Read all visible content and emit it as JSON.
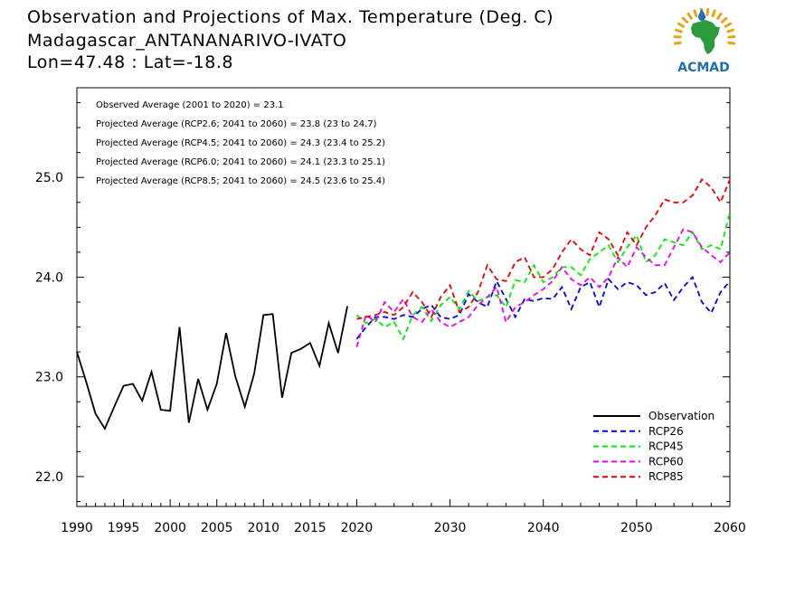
{
  "header": {
    "title": "Observation and Projections of Max. Temperature (Deg. C)",
    "station": "Madagascar_ANTANANARIVO-IVATO",
    "coords": "Lon=47.48 : Lat=-18.8"
  },
  "logo": {
    "text": "ACMAD",
    "icon": "africa-map-logo-icon",
    "colors": {
      "africa": "#2e9a3e",
      "text": "#1f6fb4",
      "rays": "#e8a317",
      "drop": "#1f6fb4"
    }
  },
  "chart_data": {
    "type": "line",
    "xlim": [
      1990,
      2060
    ],
    "ylim": [
      21.7,
      25.9
    ],
    "x_ticks": [
      1990,
      1995,
      2000,
      2005,
      2010,
      2015,
      2020,
      2030,
      2040,
      2050,
      2060
    ],
    "x_tick_labels": [
      "1990",
      "1995",
      "2000",
      "2005",
      "2010",
      "2015",
      "2020",
      "2030",
      "2040",
      "2050",
      "2060"
    ],
    "y_ticks": [
      22.0,
      23.0,
      24.0,
      25.0
    ],
    "y_tick_labels": [
      "22.0",
      "23.0",
      "24.0",
      "25.0"
    ],
    "annotations": [
      "Observed Average (2001 to 2020) = 23.1",
      "Projected Average (RCP2.6; 2041 to 2060) = 23.8 (23 to 24.7)",
      "Projected Average (RCP4.5; 2041 to 2060) = 24.3 (23.4 to 25.2)",
      "Projected Average (RCP6.0; 2041 to 2060) = 24.1 (23.3 to 25.1)",
      "Projected Average (RCP8.5; 2041 to 2060) = 24.5 (23.6 to 25.4)"
    ],
    "legend_position": "bottom-right",
    "series": [
      {
        "name": "Observation",
        "color": "#000000",
        "dash": "solid",
        "x": [
          1990,
          1991,
          1992,
          1993,
          1994,
          1995,
          1996,
          1997,
          1998,
          1999,
          2000,
          2001,
          2002,
          2003,
          2004,
          2005,
          2006,
          2007,
          2008,
          2009,
          2010,
          2011,
          2012,
          2013,
          2014,
          2015,
          2016,
          2017,
          2018,
          2019
        ],
        "y": [
          23.25,
          22.95,
          22.63,
          22.48,
          22.7,
          22.91,
          22.93,
          22.76,
          23.05,
          22.67,
          22.66,
          23.5,
          22.54,
          22.98,
          22.67,
          22.93,
          23.44,
          23.0,
          22.7,
          23.03,
          23.62,
          23.63,
          22.79,
          23.24,
          23.28,
          23.34,
          23.11,
          23.54,
          23.24,
          23.71
        ]
      },
      {
        "name": "RCP26",
        "color": "#0000ee",
        "dash": "dashed",
        "x": [
          2020,
          2021,
          2022,
          2023,
          2024,
          2025,
          2026,
          2027,
          2028,
          2029,
          2030,
          2031,
          2032,
          2033,
          2034,
          2035,
          2036,
          2037,
          2038,
          2039,
          2040,
          2041,
          2042,
          2043,
          2044,
          2045,
          2046,
          2047,
          2048,
          2049,
          2050,
          2051,
          2052,
          2053,
          2054,
          2055,
          2056,
          2057,
          2058,
          2059,
          2060
        ],
        "y": [
          23.38,
          23.5,
          23.6,
          23.6,
          23.58,
          23.62,
          23.6,
          23.68,
          23.72,
          23.6,
          23.58,
          23.62,
          23.83,
          23.75,
          23.7,
          23.96,
          23.78,
          23.6,
          23.78,
          23.76,
          23.79,
          23.78,
          23.9,
          23.68,
          23.9,
          23.95,
          23.7,
          23.98,
          23.88,
          23.95,
          23.92,
          23.82,
          23.85,
          23.94,
          23.77,
          23.9,
          24.0,
          23.75,
          23.64,
          23.85,
          23.96
        ]
      },
      {
        "name": "RCP45",
        "color": "#00ee00",
        "dash": "dashed",
        "x": [
          2020,
          2021,
          2022,
          2023,
          2024,
          2025,
          2026,
          2027,
          2028,
          2029,
          2030,
          2031,
          2032,
          2033,
          2034,
          2035,
          2036,
          2037,
          2038,
          2039,
          2040,
          2041,
          2042,
          2043,
          2044,
          2045,
          2046,
          2047,
          2048,
          2049,
          2050,
          2051,
          2052,
          2053,
          2054,
          2055,
          2056,
          2057,
          2058,
          2059,
          2060
        ],
        "y": [
          23.62,
          23.54,
          23.58,
          23.5,
          23.55,
          23.38,
          23.62,
          23.7,
          23.56,
          23.72,
          23.8,
          23.68,
          23.86,
          23.76,
          23.8,
          23.82,
          23.7,
          23.97,
          23.95,
          24.12,
          23.95,
          24.0,
          24.1,
          24.1,
          24.02,
          24.18,
          24.25,
          24.32,
          24.15,
          24.3,
          24.42,
          24.15,
          24.22,
          24.38,
          24.35,
          24.32,
          24.45,
          24.28,
          24.32,
          24.28,
          24.65
        ]
      },
      {
        "name": "RCP60",
        "color": "#ee00ee",
        "dash": "dashed",
        "x": [
          2020,
          2021,
          2022,
          2023,
          2024,
          2025,
          2026,
          2027,
          2028,
          2029,
          2030,
          2031,
          2032,
          2033,
          2034,
          2035,
          2036,
          2037,
          2038,
          2039,
          2040,
          2041,
          2042,
          2043,
          2044,
          2045,
          2046,
          2047,
          2048,
          2049,
          2050,
          2051,
          2052,
          2053,
          2054,
          2055,
          2056,
          2057,
          2058,
          2059,
          2060
        ],
        "y": [
          23.3,
          23.62,
          23.55,
          23.75,
          23.65,
          23.78,
          23.6,
          23.55,
          23.68,
          23.55,
          23.5,
          23.55,
          23.6,
          23.72,
          23.8,
          23.9,
          23.55,
          23.7,
          23.75,
          23.82,
          23.88,
          23.96,
          24.1,
          23.98,
          23.92,
          24.0,
          23.9,
          24.0,
          24.2,
          24.1,
          24.3,
          24.2,
          24.12,
          24.12,
          24.3,
          24.48,
          24.45,
          24.3,
          24.22,
          24.15,
          24.25
        ]
      },
      {
        "name": "RCP85",
        "color": "#ee0000",
        "dash": "dashed",
        "x": [
          2020,
          2021,
          2022,
          2023,
          2024,
          2025,
          2026,
          2027,
          2028,
          2029,
          2030,
          2031,
          2032,
          2033,
          2034,
          2035,
          2036,
          2037,
          2038,
          2039,
          2040,
          2041,
          2042,
          2043,
          2044,
          2045,
          2046,
          2047,
          2048,
          2049,
          2050,
          2051,
          2052,
          2053,
          2054,
          2055,
          2056,
          2057,
          2058,
          2059,
          2060
        ],
        "y": [
          23.58,
          23.6,
          23.62,
          23.65,
          23.62,
          23.7,
          23.85,
          23.75,
          23.6,
          23.8,
          23.92,
          23.65,
          23.7,
          23.85,
          24.12,
          23.98,
          23.96,
          24.15,
          24.2,
          24.0,
          24.0,
          24.08,
          24.25,
          24.38,
          24.28,
          24.22,
          24.45,
          24.38,
          24.22,
          24.45,
          24.32,
          24.5,
          24.62,
          24.78,
          24.75,
          24.75,
          24.82,
          24.98,
          24.9,
          24.75,
          24.98
        ]
      }
    ]
  }
}
